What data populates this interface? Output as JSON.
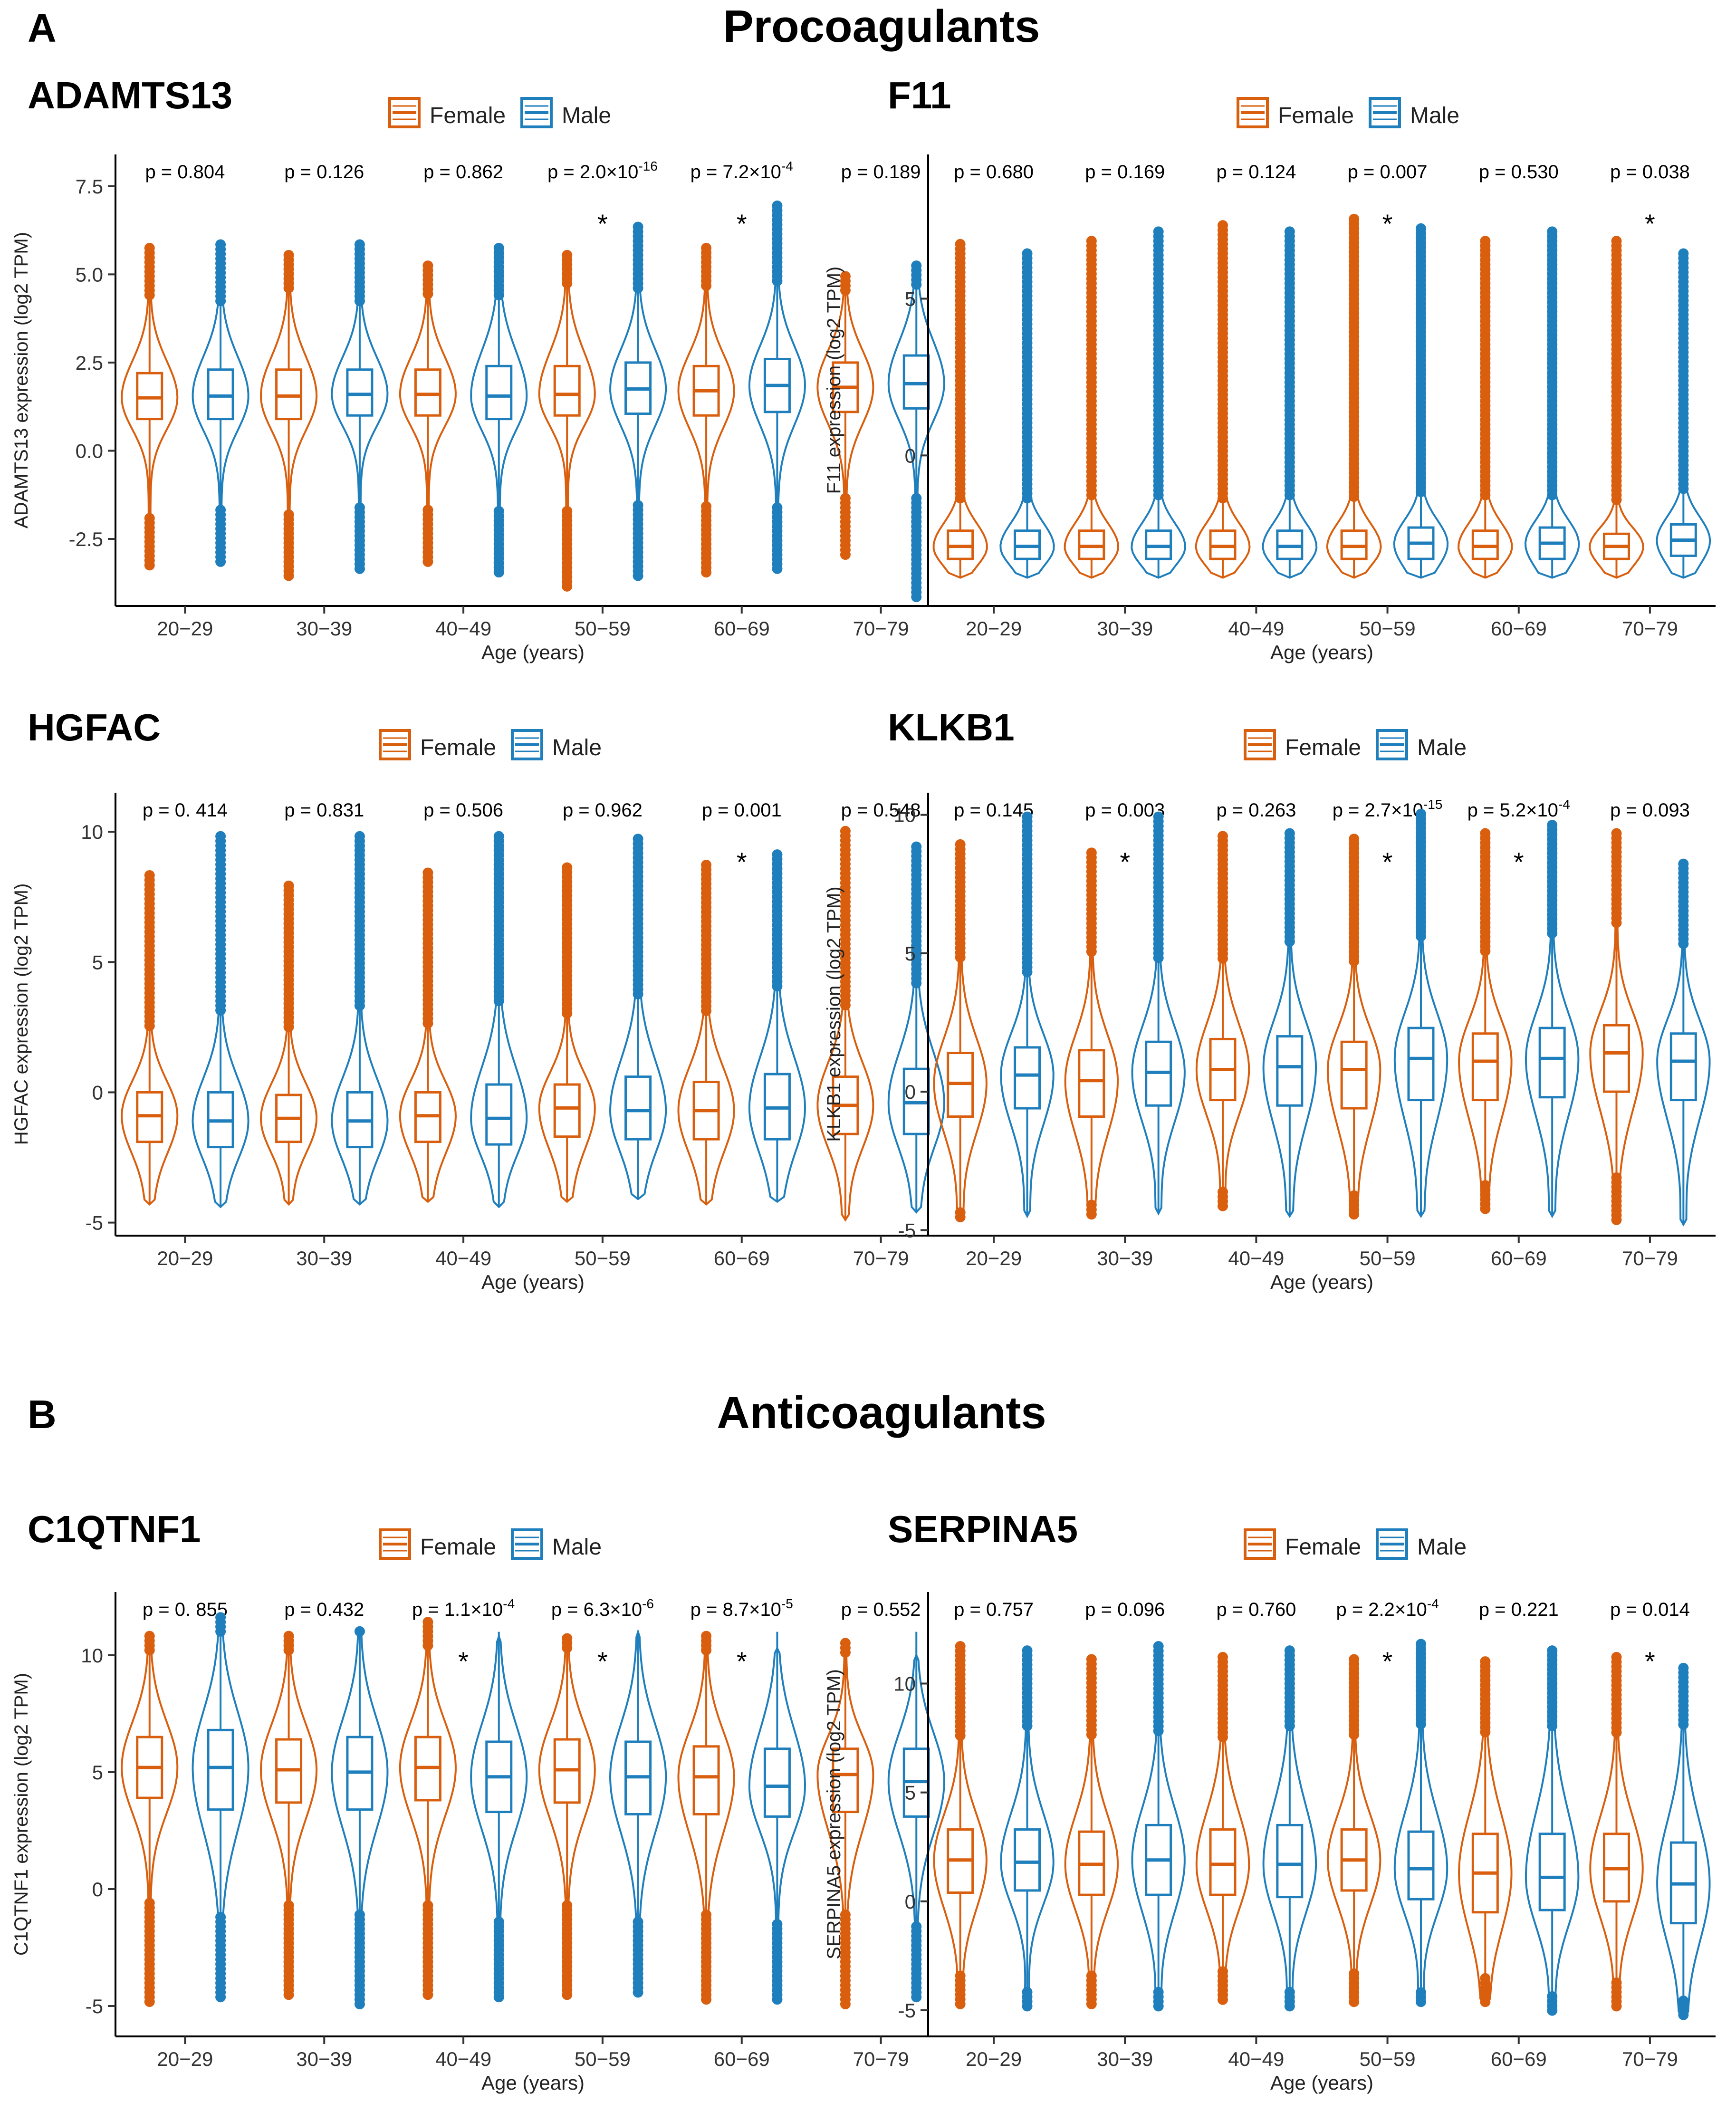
{
  "figure": {
    "section_a": {
      "letter": "A",
      "title": "Procoagulants"
    },
    "section_b": {
      "letter": "B",
      "title": "Anticoagulants"
    },
    "colors": {
      "female": "#d95f0e",
      "male": "#1f7fbd"
    },
    "sig_mark": "*"
  },
  "chart_data": [
    {
      "type": "violin",
      "title": "ADAMTS13",
      "xlabel": "Age (years)",
      "ylabel": "ADAMTS13 expression (log2 TPM)",
      "ylim": [
        -4.4,
        8.4
      ],
      "yticks": [
        -2.5,
        0,
        2.5,
        5,
        7.5
      ],
      "ytick_labels": [
        "-2.5",
        "0.0",
        "2.5",
        "5.0",
        "7.5"
      ],
      "categories": [
        "20−29",
        "30−39",
        "40−49",
        "50−59",
        "60−69",
        "70−79"
      ],
      "legend": [
        "Female",
        "Male"
      ],
      "p_values": [
        "p = 0.804",
        "p = 0.126",
        "p = 0.862",
        "p = 2.0×10-16",
        "p = 7.2×10-4",
        "p = 0.189"
      ],
      "significant": [
        false,
        false,
        false,
        true,
        true,
        false
      ],
      "series": [
        {
          "name": "Female",
          "median": [
            1.5,
            1.55,
            1.6,
            1.6,
            1.7,
            1.8
          ],
          "q1": [
            0.9,
            0.9,
            1.0,
            1.0,
            1.0,
            1.1
          ],
          "q3": [
            2.2,
            2.3,
            2.3,
            2.4,
            2.4,
            2.5
          ],
          "min": [
            -3.3,
            -3.6,
            -3.2,
            -3.9,
            -3.5,
            -3.0
          ],
          "max": [
            5.8,
            5.6,
            5.3,
            5.6,
            5.8,
            5.0
          ],
          "outlier_low": [
            -1.8,
            -1.7,
            -1.6,
            -1.6,
            -1.5,
            -1.3
          ],
          "outlier_high": [
            4.4,
            4.5,
            4.4,
            4.7,
            4.6,
            4.5
          ]
        },
        {
          "name": "Male",
          "median": [
            1.55,
            1.6,
            1.55,
            1.75,
            1.85,
            1.9
          ],
          "q1": [
            0.9,
            1.0,
            0.9,
            1.05,
            1.1,
            1.2
          ],
          "q3": [
            2.3,
            2.3,
            2.4,
            2.5,
            2.6,
            2.7
          ],
          "min": [
            -3.2,
            -3.4,
            -3.5,
            -3.6,
            -3.4,
            -4.2
          ],
          "max": [
            5.9,
            5.9,
            5.8,
            6.4,
            7.0,
            5.3
          ],
          "outlier_low": [
            -1.6,
            -1.6,
            -1.6,
            -1.5,
            -1.5,
            -1.3
          ],
          "outlier_high": [
            4.2,
            4.2,
            4.3,
            4.6,
            4.7,
            4.6
          ]
        }
      ]
    },
    {
      "type": "violin",
      "title": "F11",
      "xlabel": "Age (years)",
      "ylabel": "F11 expression (log2 TPM)",
      "ylim": [
        -4.8,
        9.6
      ],
      "yticks": [
        0,
        5
      ],
      "ytick_labels": [
        "0",
        "5"
      ],
      "categories": [
        "20−29",
        "30−39",
        "40−49",
        "50−59",
        "60−69",
        "70−79"
      ],
      "legend": [
        "Female",
        "Male"
      ],
      "p_values": [
        "p = 0.680",
        "p = 0.169",
        "p = 0.124",
        "p = 0.007",
        "p = 0.530",
        "p = 0.038"
      ],
      "significant": [
        false,
        false,
        false,
        true,
        false,
        true
      ],
      "series": [
        {
          "name": "Female",
          "median": [
            -2.9,
            -2.9,
            -2.9,
            -2.9,
            -2.9,
            -2.9
          ],
          "q1": [
            -3.3,
            -3.3,
            -3.3,
            -3.3,
            -3.3,
            -3.3
          ],
          "q3": [
            -2.4,
            -2.4,
            -2.4,
            -2.4,
            -2.4,
            -2.5
          ],
          "min": [
            -3.9,
            -3.9,
            -3.9,
            -3.9,
            -3.9,
            -3.9
          ],
          "max": [
            6.8,
            6.9,
            7.4,
            7.6,
            6.9,
            6.9
          ],
          "outlier_low": [
            -3.9,
            -3.9,
            -3.9,
            -3.9,
            -3.9,
            -3.9
          ],
          "outlier_high": [
            -1.4,
            -1.4,
            -1.4,
            -1.4,
            -1.4,
            -1.5
          ]
        },
        {
          "name": "Male",
          "median": [
            -2.9,
            -2.9,
            -2.9,
            -2.8,
            -2.8,
            -2.7
          ],
          "q1": [
            -3.3,
            -3.3,
            -3.3,
            -3.3,
            -3.3,
            -3.2
          ],
          "q3": [
            -2.4,
            -2.4,
            -2.4,
            -2.3,
            -2.3,
            -2.2
          ],
          "min": [
            -3.9,
            -3.9,
            -3.9,
            -3.9,
            -3.9,
            -3.9
          ],
          "max": [
            6.5,
            7.2,
            7.2,
            7.3,
            7.2,
            6.5
          ],
          "outlier_low": [
            -3.9,
            -3.9,
            -3.9,
            -3.9,
            -3.9,
            -3.9
          ],
          "outlier_high": [
            -1.4,
            -1.4,
            -1.4,
            -1.3,
            -1.3,
            -1.2
          ]
        }
      ]
    },
    {
      "type": "violin",
      "title": "HGFAC",
      "xlabel": "Age (years)",
      "ylabel": "HGFAC expression (log2 TPM)",
      "ylim": [
        -5.5,
        11.5
      ],
      "yticks": [
        -5,
        0,
        5,
        10
      ],
      "ytick_labels": [
        "-5",
        "0",
        "5",
        "10"
      ],
      "categories": [
        "20−29",
        "30−39",
        "40−49",
        "50−59",
        "60−69",
        "70−79"
      ],
      "legend": [
        "Female",
        "Male"
      ],
      "p_values": [
        "p = 0. 414",
        "p = 0.831",
        "p = 0.506",
        "p = 0.962",
        "p = 0.001",
        "p = 0.548"
      ],
      "significant": [
        false,
        false,
        false,
        false,
        true,
        false
      ],
      "series": [
        {
          "name": "Female",
          "median": [
            -0.9,
            -1.0,
            -0.9,
            -0.6,
            -0.7,
            -0.5
          ],
          "q1": [
            -1.9,
            -1.9,
            -1.9,
            -1.7,
            -1.8,
            -1.6
          ],
          "q3": [
            0.0,
            -0.1,
            0.0,
            0.3,
            0.4,
            0.6
          ],
          "min": [
            -4.3,
            -4.3,
            -4.2,
            -4.2,
            -4.3,
            -4.9
          ],
          "max": [
            8.4,
            8.0,
            8.5,
            8.7,
            8.8,
            10.1
          ],
          "outlier_low": [
            -4.3,
            -4.3,
            -4.2,
            -4.2,
            -4.3,
            -4.9
          ],
          "outlier_high": [
            2.5,
            2.4,
            2.5,
            2.9,
            3.1,
            3.3
          ]
        },
        {
          "name": "Male",
          "median": [
            -1.1,
            -1.1,
            -1.0,
            -0.7,
            -0.6,
            -0.4
          ],
          "q1": [
            -2.1,
            -2.1,
            -2.0,
            -1.8,
            -1.8,
            -1.6
          ],
          "q3": [
            0.0,
            0.0,
            0.3,
            0.6,
            0.7,
            0.9
          ],
          "min": [
            -4.4,
            -4.3,
            -4.4,
            -4.1,
            -4.2,
            -4.6
          ],
          "max": [
            9.9,
            9.9,
            9.9,
            9.8,
            9.2,
            9.5
          ],
          "outlier_low": [
            -4.4,
            -4.3,
            -4.4,
            -4.1,
            -4.2,
            -4.6
          ],
          "outlier_high": [
            3.0,
            3.2,
            3.4,
            3.7,
            3.9,
            4.1
          ]
        }
      ]
    },
    {
      "type": "violin",
      "title": "KLKB1",
      "xlabel": "Age (years)",
      "ylabel": "KLKB1 expression (log2 TPM)",
      "ylim": [
        -5.2,
        10.8
      ],
      "yticks": [
        -5,
        0,
        5,
        10
      ],
      "ytick_labels": [
        "-5",
        "0",
        "5",
        "10"
      ],
      "categories": [
        "20−29",
        "30−39",
        "40−49",
        "50−59",
        "60−69",
        "70−79"
      ],
      "legend": [
        "Female",
        "Male"
      ],
      "p_values": [
        "p = 0.145",
        "p = 0.003",
        "p = 0.263",
        "p = 2.7×10-15",
        "p = 5.2×10-4",
        "p = 0.093"
      ],
      "significant": [
        false,
        true,
        false,
        true,
        true,
        false
      ],
      "series": [
        {
          "name": "Female",
          "median": [
            0.3,
            0.4,
            0.8,
            0.8,
            1.1,
            1.4
          ],
          "q1": [
            -0.9,
            -0.9,
            -0.3,
            -0.6,
            -0.3,
            0.0
          ],
          "q3": [
            1.4,
            1.5,
            1.9,
            1.8,
            2.1,
            2.4
          ],
          "min": [
            -4.6,
            -4.5,
            -4.2,
            -4.5,
            -4.3,
            -4.7
          ],
          "max": [
            9.0,
            8.7,
            9.3,
            9.2,
            9.4,
            9.4
          ],
          "outlier_low": [
            -4.2,
            -4.0,
            -3.5,
            -3.7,
            -3.3,
            -3.0
          ],
          "outlier_high": [
            4.7,
            4.9,
            4.7,
            4.6,
            5.0,
            6.0
          ]
        },
        {
          "name": "Male",
          "median": [
            0.6,
            0.7,
            0.9,
            1.2,
            1.2,
            1.1
          ],
          "q1": [
            -0.6,
            -0.5,
            -0.5,
            -0.3,
            -0.2,
            -0.3
          ],
          "q3": [
            1.6,
            1.8,
            2.0,
            2.3,
            2.3,
            2.1
          ],
          "min": [
            -4.5,
            -4.4,
            -4.5,
            -4.5,
            -4.5,
            -4.8
          ],
          "max": [
            10.0,
            10.0,
            9.4,
            10.1,
            9.7,
            8.3
          ],
          "outlier_low": [
            -4.5,
            -4.4,
            -4.5,
            -4.5,
            -4.5,
            -4.8
          ],
          "outlier_high": [
            4.2,
            4.8,
            5.3,
            5.6,
            5.7,
            5.3
          ]
        }
      ]
    },
    {
      "type": "violin",
      "title": "C1QTNF1",
      "xlabel": "Age (years)",
      "ylabel": "C1QTNF1 expression (log2 TPM)",
      "ylim": [
        -6.3,
        12.7
      ],
      "yticks": [
        -5,
        0,
        5,
        10
      ],
      "ytick_labels": [
        "-5",
        "0",
        "5",
        "10"
      ],
      "categories": [
        "20−29",
        "30−39",
        "40−49",
        "50−59",
        "60−69",
        "70−79"
      ],
      "legend": [
        "Female",
        "Male"
      ],
      "p_values": [
        "p = 0. 855",
        "p = 0.432",
        "p = 1.1×10-4",
        "p = 6.3×10-6",
        "p = 8.7×10-5",
        "p = 0.552"
      ],
      "significant": [
        false,
        false,
        true,
        true,
        true,
        false
      ],
      "series": [
        {
          "name": "Female",
          "median": [
            5.2,
            5.1,
            5.2,
            5.1,
            4.8,
            4.9
          ],
          "q1": [
            3.9,
            3.7,
            3.8,
            3.7,
            3.2,
            3.3
          ],
          "q3": [
            6.5,
            6.4,
            6.5,
            6.4,
            6.1,
            6.0
          ],
          "min": [
            -4.9,
            -4.6,
            -4.6,
            -4.6,
            -4.8,
            -5.0
          ],
          "max": [
            10.9,
            10.9,
            11.5,
            10.8,
            10.9,
            10.6
          ],
          "outlier_low": [
            -0.4,
            -0.6,
            -0.5,
            -0.6,
            -0.9,
            -1.0
          ],
          "outlier_high": [
            10.2,
            10.1,
            10.3,
            10.2,
            10.1,
            10.0
          ]
        },
        {
          "name": "Male",
          "median": [
            5.2,
            5.0,
            4.8,
            4.8,
            4.4,
            4.6
          ],
          "q1": [
            3.4,
            3.4,
            3.3,
            3.2,
            3.1,
            3.1
          ],
          "q3": [
            6.8,
            6.5,
            6.3,
            6.3,
            6.0,
            6.0
          ],
          "min": [
            -4.7,
            -5.0,
            -4.7,
            -4.5,
            -4.8,
            -4.7
          ],
          "max": [
            11.7,
            11.1,
            10.8,
            11.0,
            10.3,
            10.0
          ],
          "outlier_low": [
            -1.0,
            -1.0,
            -1.2,
            -1.3,
            -1.4,
            -1.4
          ],
          "outlier_high": [
            11.0,
            11.0,
            11.0,
            11.0,
            11.0,
            11.0
          ]
        }
      ]
    },
    {
      "type": "violin",
      "title": "SERPINA5",
      "xlabel": "Age (years)",
      "ylabel": "SERPINA5 expression (log2 TPM)",
      "ylim": [
        -6.2,
        14.2
      ],
      "yticks": [
        -5,
        0,
        5,
        10
      ],
      "ytick_labels": [
        "-5",
        "0",
        "5",
        "10"
      ],
      "categories": [
        "20−29",
        "30−39",
        "40−49",
        "50−59",
        "60−69",
        "70−79"
      ],
      "legend": [
        "Female",
        "Male"
      ],
      "p_values": [
        "p = 0.757",
        "p = 0.096",
        "p = 0.760",
        "p = 2.2×10-4",
        "p = 0.221",
        "p = 0.014"
      ],
      "significant": [
        false,
        false,
        false,
        true,
        false,
        true
      ],
      "series": [
        {
          "name": "Female",
          "median": [
            1.9,
            1.7,
            1.7,
            1.9,
            1.3,
            1.5
          ],
          "q1": [
            0.4,
            0.3,
            0.3,
            0.5,
            -0.5,
            0.0
          ],
          "q3": [
            3.3,
            3.2,
            3.3,
            3.3,
            3.1,
            3.1
          ],
          "min": [
            -4.8,
            -4.8,
            -4.6,
            -4.7,
            -4.7,
            -4.9
          ],
          "max": [
            11.8,
            11.2,
            11.3,
            11.2,
            11.1,
            11.3
          ],
          "outlier_low": [
            -3.4,
            -3.3,
            -3.2,
            -3.3,
            -3.5,
            -3.6
          ],
          "outlier_high": [
            7.5,
            7.5,
            7.5,
            7.6,
            7.7,
            7.6
          ]
        },
        {
          "name": "Male",
          "median": [
            1.8,
            1.9,
            1.7,
            1.5,
            1.1,
            0.8
          ],
          "q1": [
            0.5,
            0.3,
            0.2,
            0.1,
            -0.4,
            -1.0
          ],
          "q3": [
            3.3,
            3.5,
            3.5,
            3.2,
            3.1,
            2.7
          ],
          "min": [
            -4.9,
            -4.9,
            -4.9,
            -4.7,
            -5.1,
            -5.3
          ],
          "max": [
            11.6,
            11.8,
            11.6,
            11.9,
            11.6,
            10.8
          ],
          "outlier_low": [
            -4.0,
            -4.0,
            -4.0,
            -4.0,
            -4.2,
            -4.4
          ],
          "outlier_high": [
            8.0,
            7.8,
            8.0,
            8.0,
            8.0,
            8.0
          ]
        }
      ]
    }
  ]
}
